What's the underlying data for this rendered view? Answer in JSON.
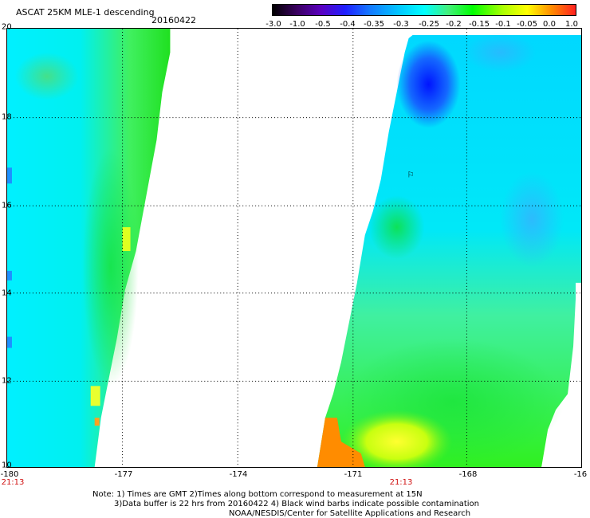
{
  "header": {
    "title": "ASCAT 25KM MLE-1 descending",
    "date": "20160422"
  },
  "colorbar": {
    "ticks": [
      "-3.0",
      "-1.0",
      "-0.5",
      "-0.4",
      "-0.35",
      "-0.3",
      "-0.25",
      "-0.2",
      "-0.15",
      "-0.1",
      "-0.05",
      "0.0",
      "1.0"
    ],
    "colors": [
      "#000000",
      "#4b0082",
      "#1f1fff",
      "#1478ff",
      "#00e5ff",
      "#44f07a",
      "#00ff00",
      "#ffff00",
      "#ff8c00",
      "#ff2020"
    ]
  },
  "map": {
    "lat_labels": [
      "20",
      "18",
      "16",
      "14",
      "12",
      "10"
    ],
    "lon_labels": [
      "-180",
      "-177",
      "-174",
      "-171",
      "-168",
      "-16"
    ],
    "time_labels": [
      "21:13",
      "21:13"
    ],
    "wind_barb_symbol": "⚐"
  },
  "footer": {
    "line1": "Note: 1) Times are GMT 2)Times along bottom correspond to measurement at 15N",
    "line2": "3)Data buffer is 22 hrs from 20160422 4) Black wind barbs indicate possible contamination",
    "line3": "NOAA/NESDIS/Center for Satellite Applications and Research"
  }
}
